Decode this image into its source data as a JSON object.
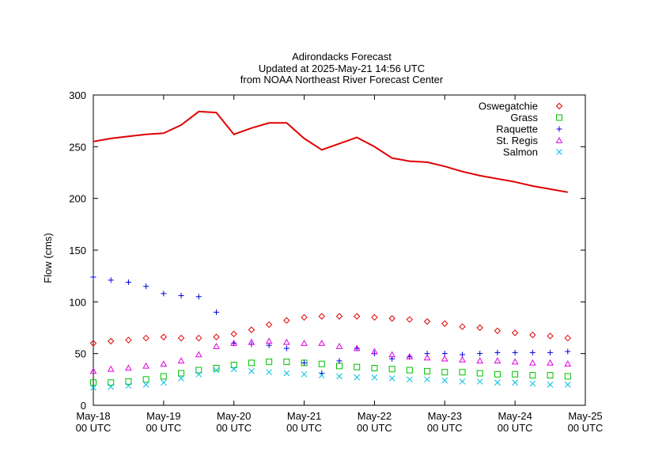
{
  "chart_data": {
    "type": "scatter",
    "title_lines": [
      "Adirondacks Forecast",
      "Updated at 2025-May-21 14:56 UTC",
      "from NOAA Northeast River Forecast Center"
    ],
    "ylabel": "Flow (cms)",
    "ylim": [
      0,
      300
    ],
    "yticks": [
      0,
      50,
      100,
      150,
      200,
      250,
      300
    ],
    "xlim": [
      0,
      7
    ],
    "xticks": [
      {
        "x": 0,
        "line1": "May-18",
        "line2": "00 UTC"
      },
      {
        "x": 1,
        "line1": "May-19",
        "line2": "00 UTC"
      },
      {
        "x": 2,
        "line1": "May-20",
        "line2": "00 UTC"
      },
      {
        "x": 3,
        "line1": "May-21",
        "line2": "00 UTC"
      },
      {
        "x": 4,
        "line1": "May-22",
        "line2": "00 UTC"
      },
      {
        "x": 5,
        "line1": "May-23",
        "line2": "00 UTC"
      },
      {
        "x": 6,
        "line1": "May-24",
        "line2": "00 UTC"
      },
      {
        "x": 7,
        "line1": "May-25",
        "line2": "00 UTC"
      }
    ],
    "legend_position": "top-right",
    "x": [
      0,
      0.25,
      0.5,
      0.75,
      1,
      1.25,
      1.5,
      1.75,
      2,
      2.25,
      2.5,
      2.75,
      3,
      3.25,
      3.5,
      3.75,
      4,
      4.25,
      4.5,
      4.75,
      5,
      5.25,
      5.5,
      5.75,
      6,
      6.25,
      6.5,
      6.75
    ],
    "line_series": {
      "color": "#e00000",
      "x": [
        0,
        0.25,
        0.5,
        0.75,
        1,
        1.25,
        1.5,
        1.75,
        2,
        2.25,
        2.5,
        2.75,
        3,
        3.25,
        3.5,
        3.75,
        4,
        4.25,
        4.5,
        4.75,
        5,
        5.25,
        5.5,
        5.75,
        6,
        6.25,
        6.5,
        6.75
      ],
      "values": [
        255,
        258,
        260,
        262,
        263,
        271,
        284,
        283,
        262,
        268,
        273,
        273,
        258,
        247,
        253,
        259,
        250,
        239,
        236,
        235,
        231,
        226,
        222,
        219,
        216,
        212,
        209,
        206
      ]
    },
    "series": [
      {
        "name": "Oswegatchie",
        "marker": "diamond",
        "color": "#e00000",
        "values": [
          60,
          62,
          63,
          65,
          66,
          65,
          65,
          66,
          69,
          73,
          78,
          82,
          85,
          86,
          86,
          86,
          85,
          84,
          83,
          81,
          79,
          76,
          75,
          72,
          70,
          68,
          67,
          65
        ]
      },
      {
        "name": "Grass",
        "marker": "square",
        "color": "#00c000",
        "values": [
          22,
          22,
          23,
          25,
          28,
          31,
          34,
          36,
          39,
          41,
          42,
          42,
          41,
          40,
          38,
          37,
          36,
          35,
          34,
          33,
          32,
          32,
          31,
          30,
          30,
          29,
          29,
          28
        ]
      },
      {
        "name": "Raquette",
        "marker": "plus",
        "color": "#0000e0",
        "values": [
          124,
          121,
          119,
          115,
          108,
          106,
          105,
          90,
          60,
          59,
          58,
          55,
          41,
          31,
          43,
          55,
          50,
          45,
          47,
          50,
          50,
          49,
          50,
          51,
          51,
          51,
          51,
          52
        ]
      },
      {
        "name": "St. Regis",
        "marker": "triangle",
        "color": "#e000e0",
        "values": [
          33,
          35,
          36,
          38,
          40,
          43,
          49,
          57,
          60,
          61,
          62,
          61,
          60,
          60,
          57,
          55,
          52,
          49,
          47,
          46,
          45,
          44,
          43,
          43,
          42,
          41,
          41,
          40
        ]
      },
      {
        "name": "Salmon",
        "marker": "x",
        "color": "#00c0e0",
        "values": [
          17,
          18,
          19,
          20,
          22,
          26,
          30,
          34,
          35,
          33,
          32,
          31,
          30,
          29,
          28,
          27,
          27,
          26,
          25,
          25,
          24,
          23,
          23,
          22,
          22,
          21,
          20,
          20
        ]
      }
    ]
  }
}
